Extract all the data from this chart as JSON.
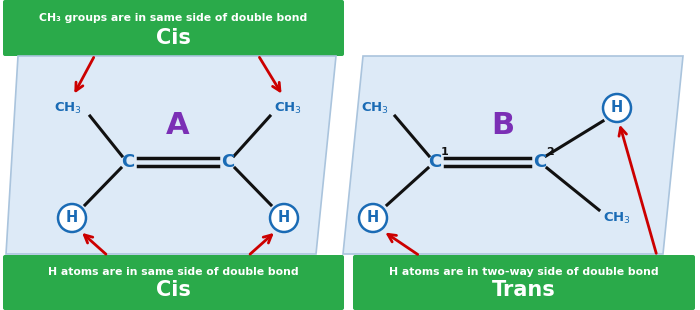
{
  "bg_color": "#ffffff",
  "green_color": "#2aaa4a",
  "blue_color": "#1a6bb5",
  "purple_color": "#7b2fb5",
  "black_color": "#111111",
  "red_color": "#cc0000",
  "para_fill": "#ddeaf7",
  "para_edge": "#aac4dd",
  "left_top_line1": "CH₃ groups are in same side of double bond",
  "left_top_line2": "Cis",
  "left_bot_line1": "H atoms are in same side of double bond",
  "left_bot_line2": "Cis",
  "left_letter": "A",
  "right_bot_line1": "H atoms are in two-way side of double bond",
  "right_bot_line2": "Trans",
  "right_letter": "B"
}
